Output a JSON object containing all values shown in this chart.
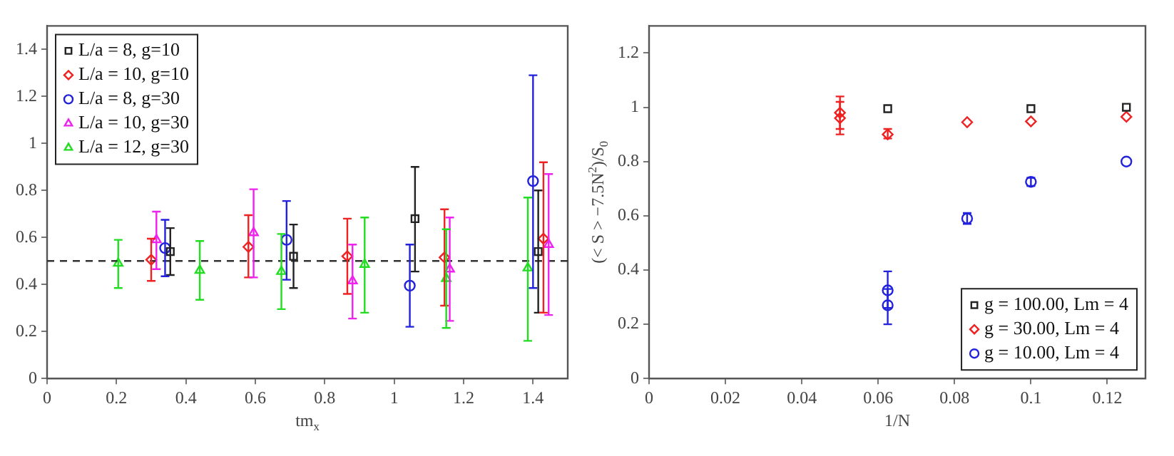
{
  "chart_data": [
    {
      "type": "scatter",
      "xlabel": "tm$_{x}$",
      "xlim": [
        0,
        1.5
      ],
      "xticks": [
        0,
        0.2,
        0.4,
        0.6,
        0.8,
        1,
        1.2,
        1.4
      ],
      "ylim": [
        0,
        1.5
      ],
      "yticks": [
        0,
        0.2,
        0.4,
        0.6,
        0.8,
        1,
        1.2,
        1.4
      ],
      "grid": false,
      "legend": "top left",
      "ref_lines": [
        {
          "axis": "y",
          "value": 0.5,
          "line_style": "dashed",
          "color": "#333333"
        }
      ],
      "series": [
        {
          "name": "L/a = 8, g=10",
          "color": "#222222",
          "marker": "square",
          "x": [
            0.355,
            0.71,
            1.06,
            1.415
          ],
          "values": [
            0.54,
            0.52,
            0.68,
            0.54
          ],
          "errors": [
            [
              0.44,
              0.64
            ],
            [
              0.385,
              0.655
            ],
            [
              0.455,
              0.9
            ],
            [
              0.28,
              0.8
            ]
          ]
        },
        {
          "name": "L/a = 10, g=10",
          "color": "#ee2222",
          "marker": "diamond",
          "x": [
            0.3,
            0.58,
            0.865,
            1.145,
            1.43
          ],
          "values": [
            0.505,
            0.56,
            0.52,
            0.515,
            0.595
          ],
          "errors": [
            [
              0.415,
              0.595
            ],
            [
              0.43,
              0.695
            ],
            [
              0.36,
              0.68
            ],
            [
              0.31,
              0.72
            ],
            [
              0.28,
              0.92
            ]
          ]
        },
        {
          "name": "L/a = 8, g=30",
          "color": "#2222dd",
          "marker": "circle",
          "x": [
            0.34,
            0.69,
            1.045,
            1.4
          ],
          "values": [
            0.555,
            0.59,
            0.395,
            0.84
          ],
          "errors": [
            [
              0.435,
              0.675
            ],
            [
              0.42,
              0.755
            ],
            [
              0.22,
              0.57
            ],
            [
              0.385,
              1.29
            ]
          ]
        },
        {
          "name": "L/a = 10, g=30",
          "color": "#ee22ee",
          "marker": "triangle",
          "x": [
            0.315,
            0.595,
            0.88,
            1.16,
            1.445
          ],
          "values": [
            0.59,
            0.62,
            0.415,
            0.465,
            0.57
          ],
          "errors": [
            [
              0.465,
              0.71
            ],
            [
              0.43,
              0.805
            ],
            [
              0.255,
              0.57
            ],
            [
              0.245,
              0.685
            ],
            [
              0.27,
              0.87
            ]
          ]
        },
        {
          "name": "L/a = 12, g=30",
          "color": "#22dd22",
          "marker": "triangle",
          "x": [
            0.205,
            0.44,
            0.675,
            0.915,
            1.15,
            1.385
          ],
          "values": [
            0.49,
            0.46,
            0.455,
            0.485,
            0.425,
            0.47
          ],
          "errors": [
            [
              0.385,
              0.59
            ],
            [
              0.335,
              0.585
            ],
            [
              0.295,
              0.615
            ],
            [
              0.28,
              0.685
            ],
            [
              0.215,
              0.635
            ],
            [
              0.16,
              0.77
            ]
          ]
        }
      ]
    },
    {
      "type": "scatter",
      "xlabel": "1/N",
      "ylabel": "(< S > −7.5N$^{2}$)/S$_{0}$",
      "xlim": [
        0,
        0.13
      ],
      "xticks": [
        0,
        0.02,
        0.04,
        0.06,
        0.08,
        0.1,
        0.12
      ],
      "ylim": [
        0,
        1.3
      ],
      "yticks": [
        0,
        0.2,
        0.4,
        0.6,
        0.8,
        1,
        1.2
      ],
      "grid": false,
      "legend": "bottom right",
      "series": [
        {
          "name": "g = 100.00, Lm = 4",
          "color": "#222222",
          "marker": "square",
          "x": [
            0.0625,
            0.1,
            0.125
          ],
          "values": [
            0.995,
            0.995,
            1.0
          ]
        },
        {
          "name": "g = 30.00, Lm = 4",
          "color": "#ee2222",
          "marker": "diamond",
          "x": [
            0.05,
            0.05,
            0.0625,
            0.0833,
            0.1,
            0.125
          ],
          "values": [
            0.98,
            0.96,
            0.9,
            0.945,
            0.948,
            0.965
          ],
          "errors": [
            [
              0.92,
              1.04
            ],
            [
              0.9,
              1.02
            ],
            [
              0.885,
              0.92
            ],
            null,
            null,
            null
          ]
        },
        {
          "name": "g = 10.00, Lm = 4",
          "color": "#2222dd",
          "marker": "circle",
          "x": [
            0.0625,
            0.0625,
            0.0833,
            0.1,
            0.125
          ],
          "values": [
            0.325,
            0.27,
            0.59,
            0.725,
            0.8
          ],
          "errors": [
            [
              0.26,
              0.395
            ],
            [
              0.2,
              0.33
            ],
            [
              0.57,
              0.61
            ],
            [
              0.71,
              0.74
            ],
            null
          ]
        }
      ]
    }
  ]
}
